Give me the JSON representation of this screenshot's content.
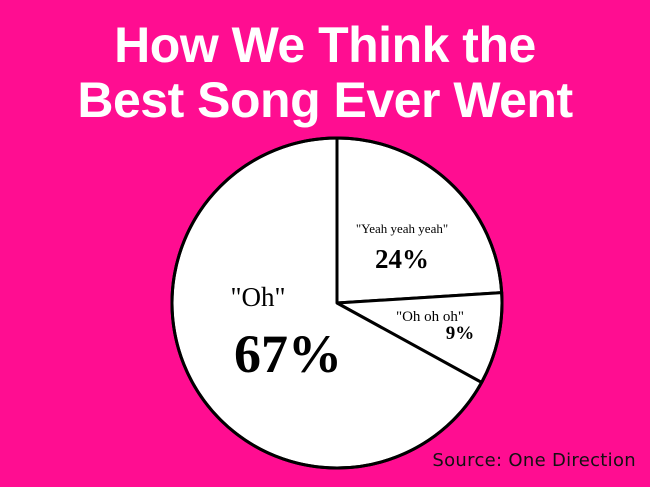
{
  "title": {
    "line1": "How We Think the",
    "line2": "Best Song Ever Went"
  },
  "source": "Source: One Direction",
  "colors": {
    "background": "#ff0d91",
    "pie_fill": "#ffffff",
    "pie_stroke": "#000000",
    "title": "#ffffff"
  },
  "chart_data": {
    "type": "pie",
    "title": "How We Think the Best Song Ever Went",
    "slices": [
      {
        "label": "\"Yeah yeah yeah\"",
        "value": 24,
        "value_label": "24%"
      },
      {
        "label": "\"Oh oh oh\"",
        "value": 9,
        "value_label": "9%"
      },
      {
        "label": "\"Oh\"",
        "value": 67,
        "value_label": "67%"
      }
    ],
    "legend": "none"
  }
}
